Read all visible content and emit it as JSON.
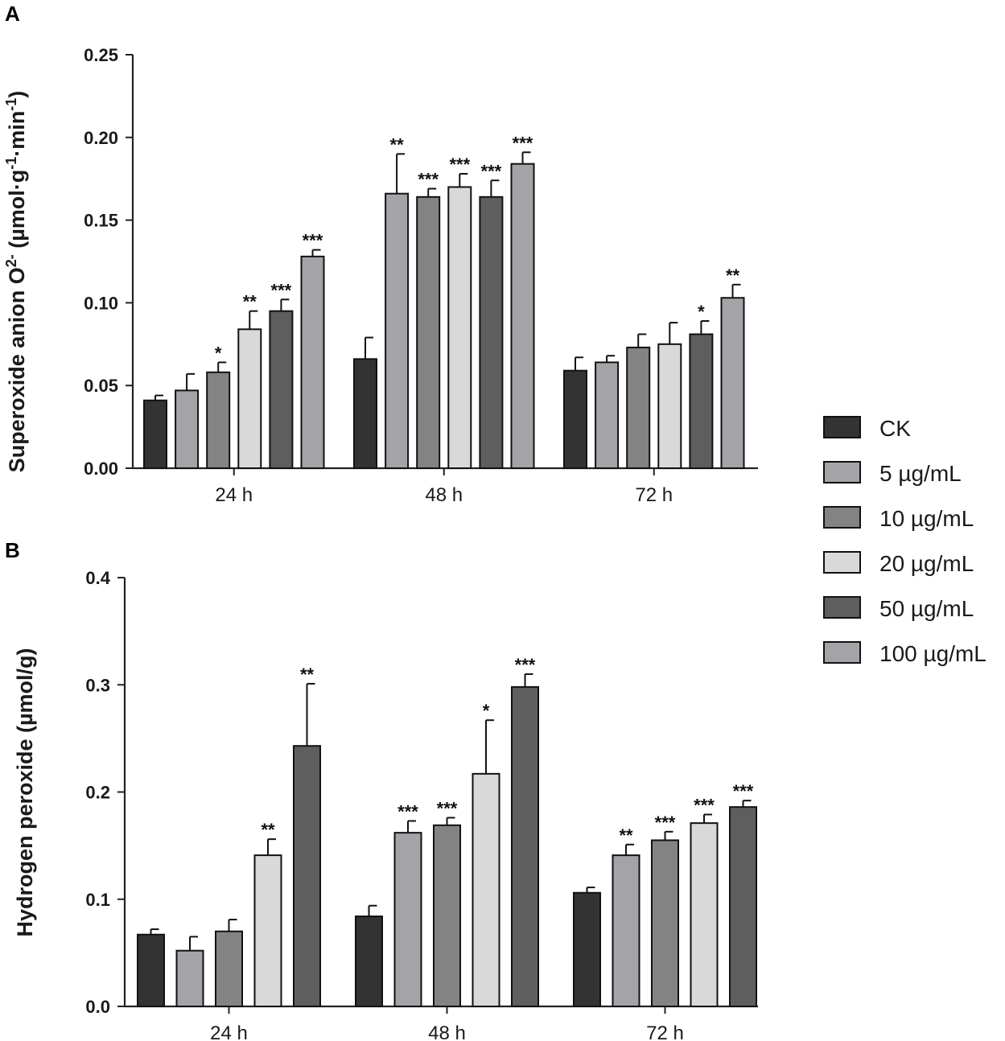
{
  "colors": {
    "CK": "#333333",
    "5 µg/mL": "#a4a4a8",
    "10 µg/mL": "#838383",
    "20 µg/mL": "#d9d9d9",
    "50 µg/mL": "#5e5e5e",
    "100 µg/mL": "#a4a4a8"
  },
  "legend": [
    "CK",
    "5 µg/mL",
    "10 µg/mL",
    "20 µg/mL",
    "50 µg/mL",
    "100 µg/mL"
  ],
  "chart_data": [
    {
      "panel": "A",
      "type": "bar",
      "ylabel": "Superoxide anion O2- (µmol·g-1·min-1)",
      "ylim": [
        0,
        0.25
      ],
      "yticks": [
        "0.00",
        "0.05",
        "0.10",
        "0.15",
        "0.20",
        "0.25"
      ],
      "categories": [
        "24 h",
        "48 h",
        "72 h"
      ],
      "series": [
        {
          "name": "CK",
          "values": [
            0.041,
            0.066,
            0.059
          ],
          "errors": [
            0.003,
            0.013,
            0.008
          ],
          "sig": [
            "",
            "",
            ""
          ]
        },
        {
          "name": "5 µg/mL",
          "values": [
            0.047,
            0.166,
            0.064
          ],
          "errors": [
            0.01,
            0.024,
            0.004
          ],
          "sig": [
            "",
            "**",
            ""
          ]
        },
        {
          "name": "10 µg/mL",
          "values": [
            0.058,
            0.164,
            0.073
          ],
          "errors": [
            0.006,
            0.005,
            0.008
          ],
          "sig": [
            "*",
            "***",
            ""
          ]
        },
        {
          "name": "20 µg/mL",
          "values": [
            0.084,
            0.17,
            0.075
          ],
          "errors": [
            0.011,
            0.008,
            0.013
          ],
          "sig": [
            "**",
            "***",
            ""
          ]
        },
        {
          "name": "50 µg/mL",
          "values": [
            0.095,
            0.164,
            0.081
          ],
          "errors": [
            0.007,
            0.01,
            0.008
          ],
          "sig": [
            "***",
            "***",
            "*"
          ]
        },
        {
          "name": "100 µg/mL",
          "values": [
            0.128,
            0.184,
            0.103
          ],
          "errors": [
            0.004,
            0.007,
            0.008
          ],
          "sig": [
            "***",
            "***",
            "**"
          ]
        }
      ]
    },
    {
      "panel": "B",
      "type": "bar",
      "ylabel": "Hydrogen peroxide (µmol/g)",
      "ylim": [
        0,
        0.4
      ],
      "yticks": [
        "0.0",
        "0.1",
        "0.2",
        "0.3",
        "0.4"
      ],
      "categories": [
        "24 h",
        "48 h",
        "72 h"
      ],
      "series": [
        {
          "name": "CK",
          "values": [
            0.067,
            0.084,
            0.106
          ],
          "errors": [
            0.005,
            0.01,
            0.005
          ],
          "sig": [
            "",
            "",
            ""
          ]
        },
        {
          "name": "5 µg/mL",
          "values": [
            0.052,
            0.162,
            0.141
          ],
          "errors": [
            0.013,
            0.011,
            0.01
          ],
          "sig": [
            "",
            "***",
            "**"
          ]
        },
        {
          "name": "10 µg/mL",
          "values": [
            0.07,
            0.169,
            0.155
          ],
          "errors": [
            0.011,
            0.007,
            0.008
          ],
          "sig": [
            "",
            "***",
            "***"
          ]
        },
        {
          "name": "20 µg/mL",
          "values": [
            0.141,
            0.217,
            0.171
          ],
          "errors": [
            0.015,
            0.05,
            0.008
          ],
          "sig": [
            "**",
            "*",
            "***"
          ]
        },
        {
          "name": "50 µg/mL",
          "values": [
            0.243,
            0.298,
            0.186
          ],
          "errors": [
            0.058,
            0.012,
            0.006
          ],
          "sig": [
            "**",
            "***",
            "***"
          ]
        }
      ]
    }
  ]
}
